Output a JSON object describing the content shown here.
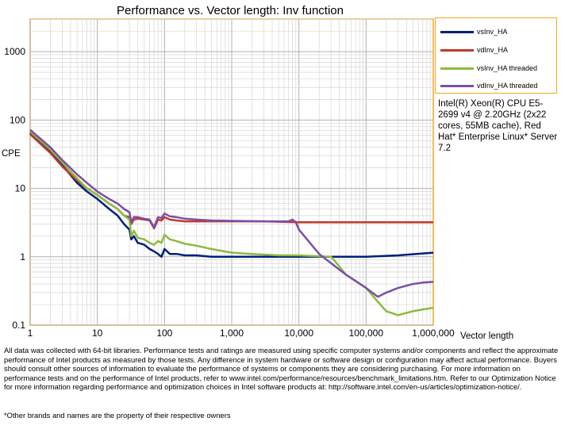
{
  "chart_data": {
    "type": "line",
    "title": "Performance vs. Vector length: Inv function",
    "xlabel": "Vector length",
    "ylabel": "CPE",
    "x_scale": "log",
    "y_scale": "log",
    "xlim": [
      1,
      1000000
    ],
    "ylim": [
      0.1,
      3000
    ],
    "x_ticks": [
      1,
      10,
      100,
      1000,
      10000,
      100000,
      1000000
    ],
    "x_tick_labels": [
      "1",
      "10",
      "100",
      "1,000",
      "10,000",
      "100,000",
      "1,000,000"
    ],
    "y_ticks": [
      0.1,
      1,
      10,
      100,
      1000
    ],
    "y_tick_labels": [
      "0.1",
      "1",
      "10",
      "100",
      "1000"
    ],
    "grid": true,
    "legend_position": "right",
    "series": [
      {
        "name": "vsInv_HA",
        "color": "#001f7a",
        "x": [
          1,
          2,
          3,
          5,
          7,
          10,
          15,
          20,
          25,
          30,
          32,
          35,
          40,
          50,
          60,
          70,
          80,
          90,
          100,
          120,
          150,
          200,
          300,
          500,
          1000,
          3000,
          10000,
          30000,
          100000,
          300000,
          1000000
        ],
        "y": [
          65,
          35,
          22,
          12,
          9,
          7,
          5,
          4,
          3,
          2.5,
          1.8,
          2.0,
          1.6,
          1.5,
          1.3,
          1.2,
          1.1,
          1.0,
          1.3,
          1.1,
          1.1,
          1.05,
          1.05,
          1.0,
          1.0,
          1.0,
          1.0,
          1.0,
          1.0,
          1.05,
          1.15
        ]
      },
      {
        "name": "vdInv_HA",
        "color": "#c0392b",
        "x": [
          1,
          2,
          3,
          5,
          7,
          10,
          15,
          20,
          25,
          30,
          32,
          35,
          40,
          50,
          60,
          70,
          80,
          90,
          100,
          120,
          150,
          200,
          300,
          500,
          1000,
          3000,
          10000,
          30000,
          100000,
          300000,
          1000000
        ],
        "y": [
          62,
          33,
          21,
          13,
          10,
          8,
          6,
          5,
          4,
          3.8,
          3.0,
          3.5,
          3.6,
          3.5,
          3.4,
          2.6,
          3.5,
          3.4,
          3.8,
          3.5,
          3.4,
          3.3,
          3.3,
          3.3,
          3.3,
          3.3,
          3.2,
          3.2,
          3.2,
          3.2,
          3.2
        ]
      },
      {
        "name": "vsInv_HA threaded",
        "color": "#8dbb3c",
        "x": [
          1,
          2,
          3,
          5,
          7,
          10,
          15,
          20,
          25,
          30,
          32,
          35,
          40,
          50,
          60,
          70,
          80,
          90,
          100,
          120,
          150,
          200,
          300,
          500,
          1000,
          2000,
          5000,
          10000,
          30000,
          35000,
          50000,
          100000,
          150000,
          200000,
          300000,
          500000,
          1000000
        ],
        "y": [
          68,
          37,
          24,
          14,
          10,
          8,
          6,
          5,
          4,
          3.5,
          2.0,
          2.4,
          1.9,
          1.8,
          1.6,
          1.5,
          1.7,
          1.6,
          2.1,
          1.8,
          1.7,
          1.55,
          1.45,
          1.3,
          1.15,
          1.1,
          1.05,
          1.05,
          1.0,
          0.85,
          0.55,
          0.35,
          0.22,
          0.16,
          0.14,
          0.16,
          0.18
        ]
      },
      {
        "name": "vdInv_HA threaded",
        "color": "#7b4fa8",
        "x": [
          1,
          2,
          3,
          5,
          7,
          10,
          15,
          20,
          25,
          30,
          32,
          35,
          40,
          50,
          60,
          70,
          80,
          90,
          100,
          120,
          150,
          200,
          300,
          500,
          1000,
          3000,
          7000,
          8000,
          9000,
          10000,
          20000,
          50000,
          100000,
          150000,
          200000,
          300000,
          500000,
          700000,
          1000000
        ],
        "y": [
          72,
          40,
          26,
          16,
          12,
          9,
          7,
          6,
          5,
          4.5,
          3.2,
          3.8,
          3.8,
          3.6,
          3.5,
          2.7,
          3.8,
          3.7,
          4.3,
          3.9,
          3.8,
          3.6,
          3.5,
          3.4,
          3.35,
          3.3,
          3.3,
          3.5,
          3.2,
          2.5,
          1.1,
          0.55,
          0.35,
          0.26,
          0.3,
          0.35,
          0.4,
          0.42,
          0.43
        ]
      }
    ]
  },
  "legend": {
    "items": [
      "vsInv_HA",
      "vdInv_HA",
      "vsInv_HA threaded",
      "vdInv_HA threaded"
    ]
  },
  "cpu_note": "Intel(R) Xeon(R) CPU E5-2699 v4 @ 2.20GHz (2x22 cores, 55MB cache), Red Hat* Enterprise Linux* Server 7.2",
  "footer": {
    "disclaimer": "All data was collected with 64-bit libraries. Performance tests and ratings are measured using specific computer systems and/or components and reflect the approximate performance of Intel products as measured by those tests. Any difference in system hardware or software design or configuration may affect actual performance. Buyers should consult other sources of information to evaluate the performance of systems or components they are considering purchasing. For more information on performance tests and on the performance of Intel products, refer to www.intel.com/performance/resources/benchmark_limitations.htm. Refer to our Optimization Notice for more information regarding performance and optimization choices in Intel software products at: http://software.intel.com/en-us/articles/optimization-notice/.",
    "trademark": "*Other brands and names are the property of their respective owners"
  },
  "colors": {
    "plot_border": "#f5a623",
    "grid": "#c8c8c8",
    "plot_bg": "#ffffff"
  }
}
